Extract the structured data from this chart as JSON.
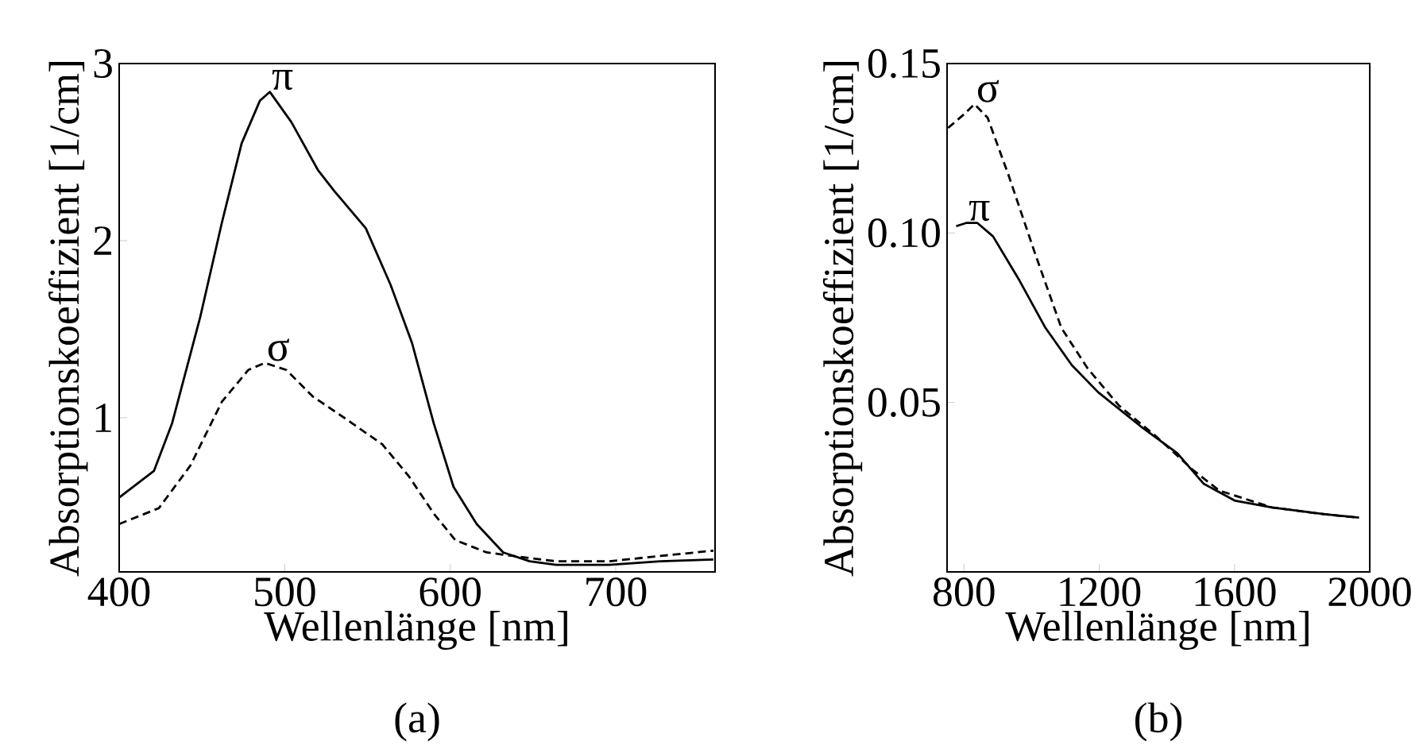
{
  "chart_data": [
    {
      "type": "line",
      "xlabel": "Wellenlänge [nm]",
      "ylabel": "Absorptionskoeffizient [1/cm]",
      "xlim": [
        400,
        760
      ],
      "ylim": [
        0.13,
        3
      ],
      "xticks": [
        400,
        500,
        600,
        700
      ],
      "yticks": [
        1,
        2,
        3
      ],
      "grid": false,
      "series": [
        {
          "name": "π",
          "color": "#000000",
          "line_style": "solid",
          "x": [
            400,
            421,
            432,
            449,
            462,
            474,
            485,
            491,
            504,
            520,
            530,
            549,
            564,
            577,
            590,
            602,
            616,
            632,
            648,
            664,
            696,
            727,
            759
          ],
          "values": [
            0.55,
            0.7,
            0.97,
            1.57,
            2.1,
            2.55,
            2.79,
            2.84,
            2.67,
            2.4,
            2.28,
            2.07,
            1.75,
            1.42,
            0.97,
            0.61,
            0.4,
            0.24,
            0.19,
            0.17,
            0.17,
            0.19,
            0.2
          ]
        },
        {
          "name": "σ",
          "color": "#000000",
          "line_style": "dashed",
          "x": [
            400,
            424,
            443,
            462,
            478,
            488,
            501,
            517,
            536,
            559,
            575,
            590,
            603,
            622,
            638,
            664,
            696,
            727,
            759
          ],
          "values": [
            0.4,
            0.49,
            0.73,
            1.09,
            1.27,
            1.31,
            1.27,
            1.12,
            1.0,
            0.85,
            0.67,
            0.46,
            0.31,
            0.24,
            0.22,
            0.19,
            0.19,
            0.22,
            0.25
          ]
        }
      ],
      "annotations": [
        "(a)"
      ]
    },
    {
      "type": "line",
      "xlabel": "Wellenlänge [nm]",
      "ylabel": "Absorptionskoeffizient [1/cm]",
      "xlim": [
        750,
        2000
      ],
      "ylim": [
        0,
        0.15
      ],
      "xticks": [
        800,
        1200,
        1600,
        2000
      ],
      "yticks": [
        {
          "value": 0.05,
          "label": "0.05"
        },
        {
          "value": 0.1,
          "label": "0.10"
        },
        {
          "value": 0.15,
          "label": "0.15"
        }
      ],
      "grid": false,
      "series": [
        {
          "name": "π",
          "color": "#000000",
          "line_style": "solid",
          "x": [
            777,
            808,
            839,
            886,
            964,
            1041,
            1119,
            1197,
            1322,
            1431,
            1509,
            1602,
            1711,
            1867,
            1968
          ],
          "values": [
            0.102,
            0.103,
            0.103,
            0.099,
            0.086,
            0.072,
            0.061,
            0.053,
            0.043,
            0.035,
            0.026,
            0.021,
            0.019,
            0.017,
            0.016
          ]
        },
        {
          "name": "σ",
          "color": "#000000",
          "line_style": "dashed",
          "x": [
            753,
            800,
            831,
            870,
            932,
            1010,
            1088,
            1166,
            1259,
            1368,
            1478,
            1555,
            1711,
            1867,
            1968
          ],
          "values": [
            0.131,
            0.135,
            0.138,
            0.134,
            0.117,
            0.094,
            0.072,
            0.06,
            0.049,
            0.04,
            0.03,
            0.024,
            0.019,
            0.017,
            0.016
          ]
        }
      ],
      "annotations": [
        "(b)"
      ]
    }
  ]
}
